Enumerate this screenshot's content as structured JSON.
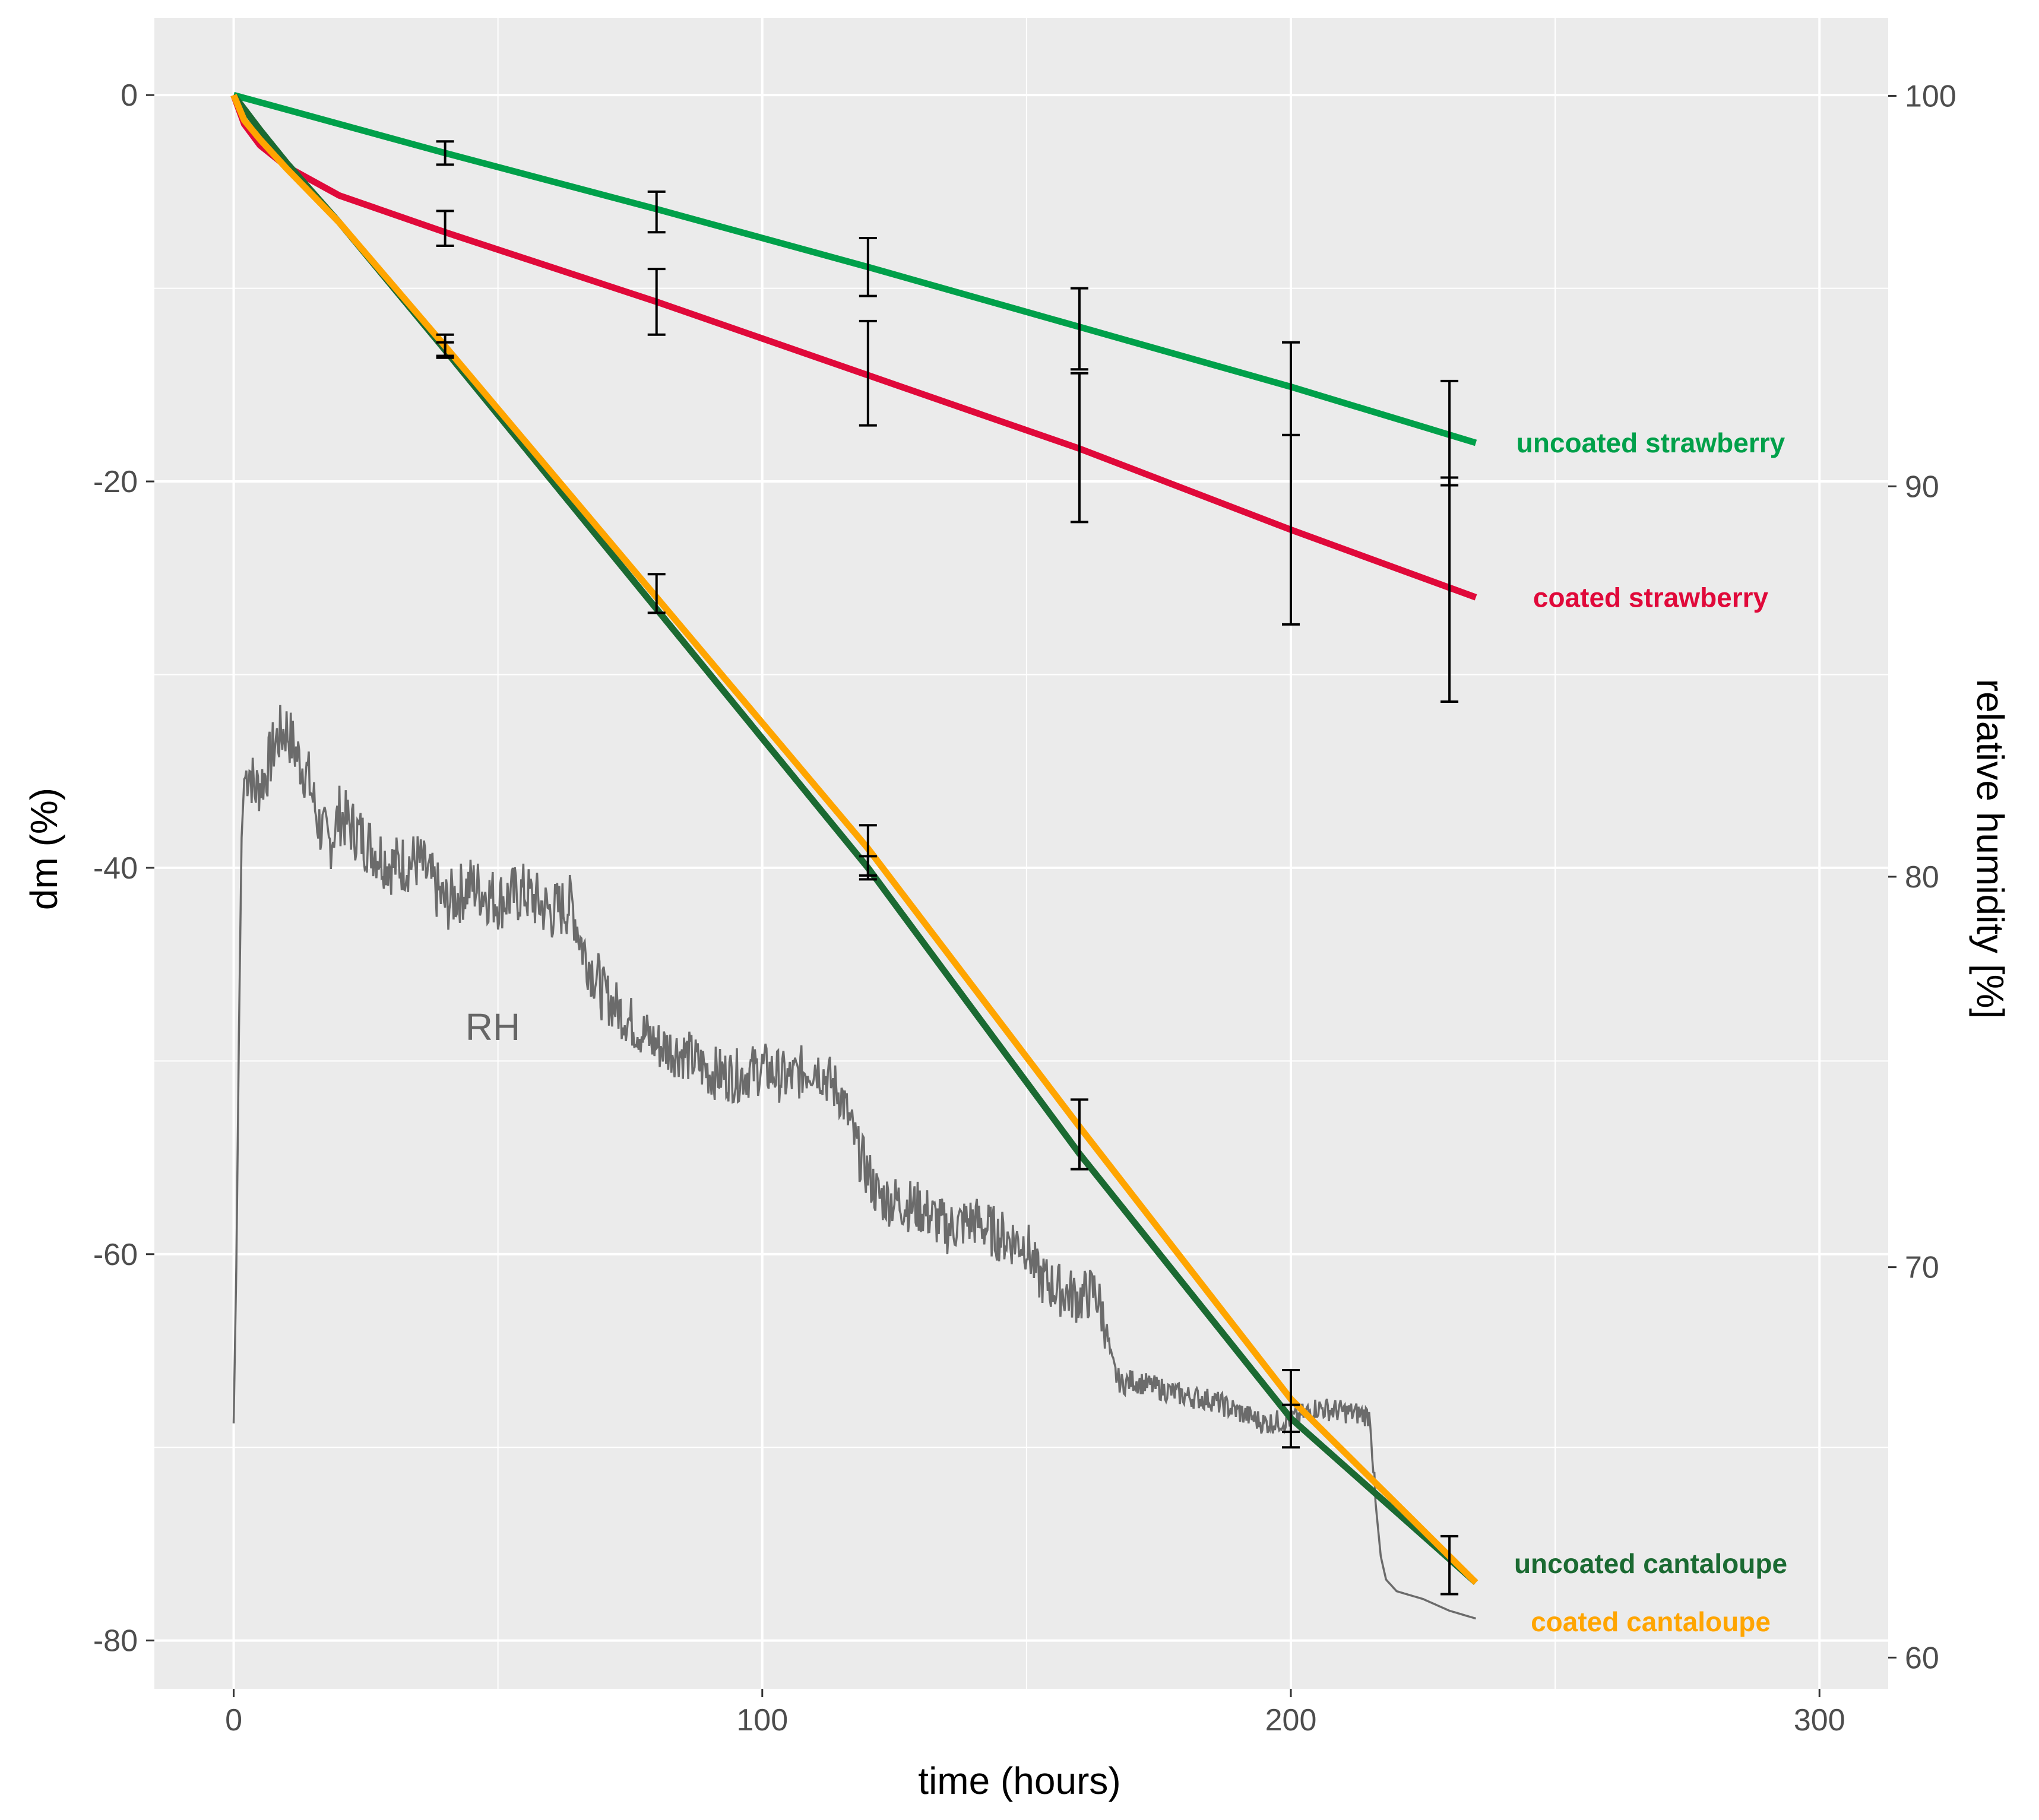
{
  "chart_data": {
    "type": "line",
    "title": "",
    "xlabel": "time (hours)",
    "ylabel": "dm (%)",
    "y2label": "relative humidity [%]",
    "xlim": [
      -15,
      313
    ],
    "ylim": [
      -82.5,
      4
    ],
    "y2lim": [
      59.2,
      102
    ],
    "x_ticks": [
      0,
      100,
      200,
      300
    ],
    "x_tick_labels": [
      "0",
      "100",
      "200",
      "300"
    ],
    "y_ticks": [
      0,
      -20,
      -40,
      -60,
      -80
    ],
    "y_tick_labels": [
      "0",
      "-20",
      "-40",
      "-60",
      "-80"
    ],
    "y2_ticks": [
      100,
      90,
      80,
      70,
      60
    ],
    "y2_tick_labels": [
      "100",
      "90",
      "80",
      "70",
      "60"
    ],
    "grid": true,
    "rh_label": "RH",
    "series": [
      {
        "name": "uncoated strawberry",
        "color": "#00a04a",
        "x": [
          0,
          40,
          80,
          120,
          160,
          200,
          235
        ],
        "y": [
          0,
          -3,
          -5.9,
          -8.9,
          -12,
          -15.1,
          -18
        ],
        "error_bars": [
          {
            "x": 40,
            "low": -3.6,
            "high": -2.4
          },
          {
            "x": 80,
            "low": -7.1,
            "high": -5.0
          },
          {
            "x": 120,
            "low": -10.4,
            "high": -7.4
          },
          {
            "x": 160,
            "low": -14.2,
            "high": -10.0
          },
          {
            "x": 200,
            "low": -17.6,
            "high": -12.8
          },
          {
            "x": 230,
            "low": -20.2,
            "high": -14.8
          }
        ]
      },
      {
        "name": "coated strawberry",
        "color": "#e0093a",
        "x": [
          0,
          2,
          5,
          10,
          20,
          40,
          80,
          120,
          160,
          200,
          235
        ],
        "y": [
          0,
          -1.5,
          -2.6,
          -3.7,
          -5.2,
          -7.1,
          -10.7,
          -14.5,
          -18.3,
          -22.5,
          -26
        ],
        "error_bars": [
          {
            "x": 40,
            "low": -7.8,
            "high": -6.0
          },
          {
            "x": 80,
            "low": -12.4,
            "high": -9.0
          },
          {
            "x": 120,
            "low": -17.1,
            "high": -11.7
          },
          {
            "x": 160,
            "low": -22.1,
            "high": -14.4
          },
          {
            "x": 200,
            "low": -27.4,
            "high": -17.6
          },
          {
            "x": 230,
            "low": -31.4,
            "high": -19.8
          }
        ]
      },
      {
        "name": "uncoated cantaloupe",
        "color": "#1b6a32",
        "x": [
          0,
          5,
          10,
          20,
          40,
          80,
          120,
          160,
          200,
          235
        ],
        "y": [
          0,
          -1.8,
          -3.5,
          -6.6,
          -13.2,
          -26.6,
          -40.0,
          -54.8,
          -68.5,
          -77
        ],
        "error_bars": [
          {
            "x": 40,
            "low": -13.6,
            "high": -12.8
          },
          {
            "x": 120,
            "low": -40.6,
            "high": -39.4
          },
          {
            "x": 200,
            "low": -69.2,
            "high": -67.8
          }
        ]
      },
      {
        "name": "coated cantaloupe",
        "color": "#ffa500",
        "x": [
          0,
          2,
          5,
          10,
          20,
          40,
          80,
          120,
          160,
          200,
          235
        ],
        "y": [
          0,
          -1.3,
          -2.3,
          -3.8,
          -6.6,
          -13.0,
          -26.0,
          -39.0,
          -53.4,
          -67.5,
          -77
        ],
        "error_bars": [
          {
            "x": 40,
            "low": -13.5,
            "high": -12.4
          },
          {
            "x": 80,
            "low": -26.8,
            "high": -24.8
          },
          {
            "x": 120,
            "low": -40.4,
            "high": -37.8
          },
          {
            "x": 160,
            "low": -55.6,
            "high": -52.0
          },
          {
            "x": 200,
            "low": -70.0,
            "high": -66.0
          },
          {
            "x": 230,
            "low": -77.6,
            "high": -74.6
          }
        ]
      },
      {
        "name": "RH",
        "color": "#6b6b6b",
        "axis": "y2",
        "x": [
          0,
          0.5,
          1,
          1.5,
          2,
          3,
          4,
          6,
          8,
          10,
          12,
          14,
          16,
          18,
          20,
          25,
          30,
          35,
          40,
          45,
          50,
          55,
          60,
          64,
          66,
          68,
          70,
          75,
          80,
          85,
          90,
          95,
          100,
          105,
          110,
          115,
          118,
          120,
          122,
          125,
          130,
          135,
          140,
          145,
          150,
          152,
          155,
          160,
          163,
          165,
          166,
          167,
          168,
          170,
          175,
          180,
          185,
          190,
          195,
          200,
          205,
          210,
          215,
          216,
          217,
          218,
          220,
          225,
          230,
          235
        ],
        "y": [
          66,
          70,
          76,
          81,
          82.5,
          82.8,
          82.2,
          82.6,
          83.5,
          83.8,
          83.1,
          82.6,
          81.4,
          80.8,
          81.6,
          80.9,
          80.3,
          80.4,
          79.3,
          79.8,
          79.4,
          79.6,
          79.1,
          79.3,
          78.2,
          77.6,
          77.0,
          76.3,
          75.7,
          75.5,
          75.0,
          74.9,
          75.1,
          74.8,
          75.2,
          74.4,
          73.0,
          72.4,
          71.8,
          71.7,
          71.5,
          71.0,
          71.2,
          70.8,
          70.6,
          69.8,
          69.5,
          69.2,
          69.4,
          68.5,
          67.6,
          67.2,
          67.0,
          67.1,
          66.9,
          66.7,
          66.6,
          66.3,
          66.0,
          66.1,
          66.4,
          66.3,
          66.2,
          64.0,
          62.6,
          62.0,
          61.7,
          61.5,
          61.2,
          61.0
        ]
      }
    ]
  }
}
